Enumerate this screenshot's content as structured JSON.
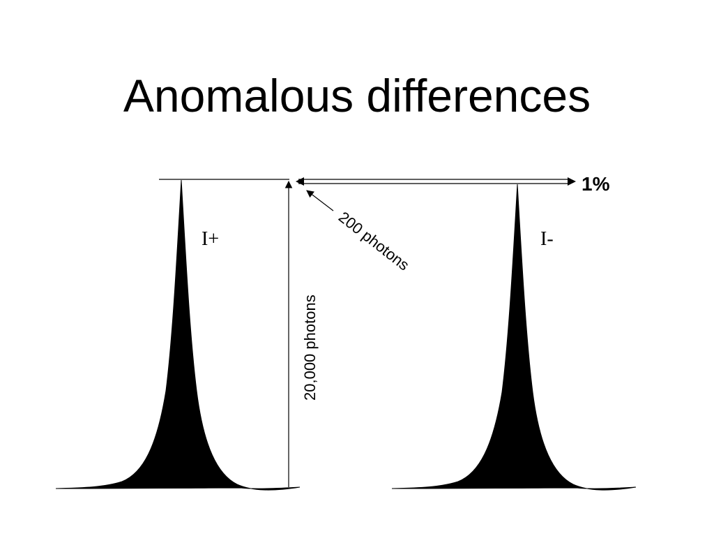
{
  "title": "Anomalous differences",
  "peaks": {
    "left_label": "I+",
    "right_label": "I-"
  },
  "annotations": {
    "total_photons": "20,000 photons",
    "difference_photons": "200 photons",
    "difference_percent": "1%"
  },
  "colors": {
    "ink": "#000000",
    "background": "#ffffff"
  }
}
